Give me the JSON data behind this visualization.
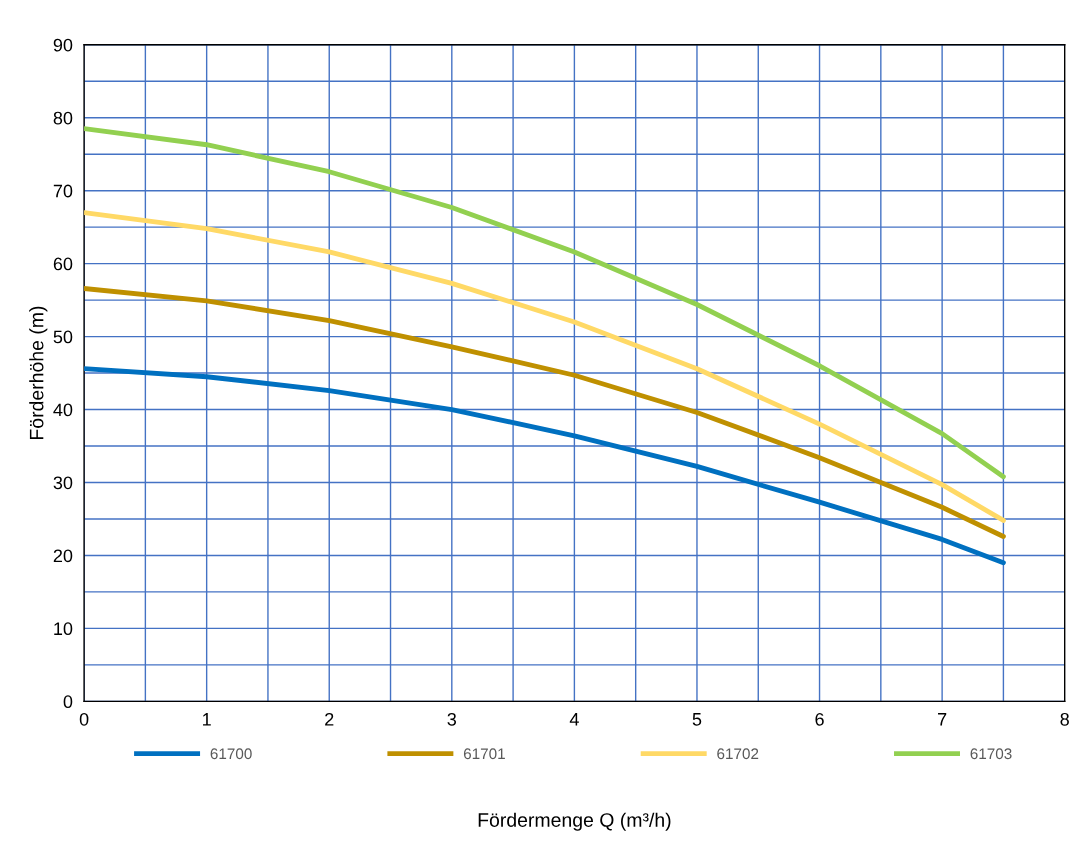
{
  "chart_data": {
    "type": "line",
    "xlabel": "Fördermenge Q (m³/h)",
    "ylabel": "Förderhöhe (m)",
    "x": [
      0,
      1,
      2,
      3,
      4,
      5,
      6,
      7,
      7.5
    ],
    "series": [
      {
        "name": "61700",
        "color": "#0070c0",
        "values": [
          45.6,
          44.5,
          42.6,
          40,
          36.4,
          32.2,
          27.3,
          22.2,
          19
        ]
      },
      {
        "name": "61701",
        "color": "#bf9000",
        "values": [
          56.6,
          54.9,
          52.2,
          48.6,
          44.7,
          39.6,
          33.4,
          26.6,
          22.6
        ]
      },
      {
        "name": "61702",
        "color": "#ffd966",
        "values": [
          67,
          64.8,
          61.6,
          57.3,
          52,
          45.6,
          38,
          29.7,
          24.8
        ]
      },
      {
        "name": "61703",
        "color": "#92d050",
        "values": [
          78.5,
          76.3,
          72.6,
          67.7,
          61.6,
          54.4,
          46,
          36.7,
          30.8
        ]
      }
    ],
    "xlim": [
      0,
      8
    ],
    "xticks": [
      0,
      {
        "value": 0.5,
        "label": null
      },
      1,
      {
        "value": 1.5,
        "label": null
      },
      2,
      {
        "value": 2.5,
        "label": null
      },
      3,
      {
        "value": 3.5,
        "label": null
      },
      4,
      {
        "value": 4.5,
        "label": null
      },
      5,
      {
        "value": 5.5,
        "label": null
      },
      6,
      {
        "value": 6.5,
        "label": null
      },
      7,
      {
        "value": 7.5,
        "label": null
      },
      8
    ],
    "ylim": [
      0,
      90
    ],
    "yticks": [
      0,
      {
        "value": 5,
        "label": null
      },
      10,
      {
        "value": 15,
        "label": null
      },
      20,
      {
        "value": 25,
        "label": null
      },
      30,
      {
        "value": 35,
        "label": null
      },
      40,
      {
        "value": 45,
        "label": null
      },
      50,
      {
        "value": 55,
        "label": null
      },
      60,
      {
        "value": 65,
        "label": null
      },
      70,
      {
        "value": 75,
        "label": null
      },
      80,
      {
        "value": 85,
        "label": null
      },
      90
    ],
    "grid": true,
    "legend": "bottom",
    "marker": "none",
    "line_style": "solid"
  }
}
